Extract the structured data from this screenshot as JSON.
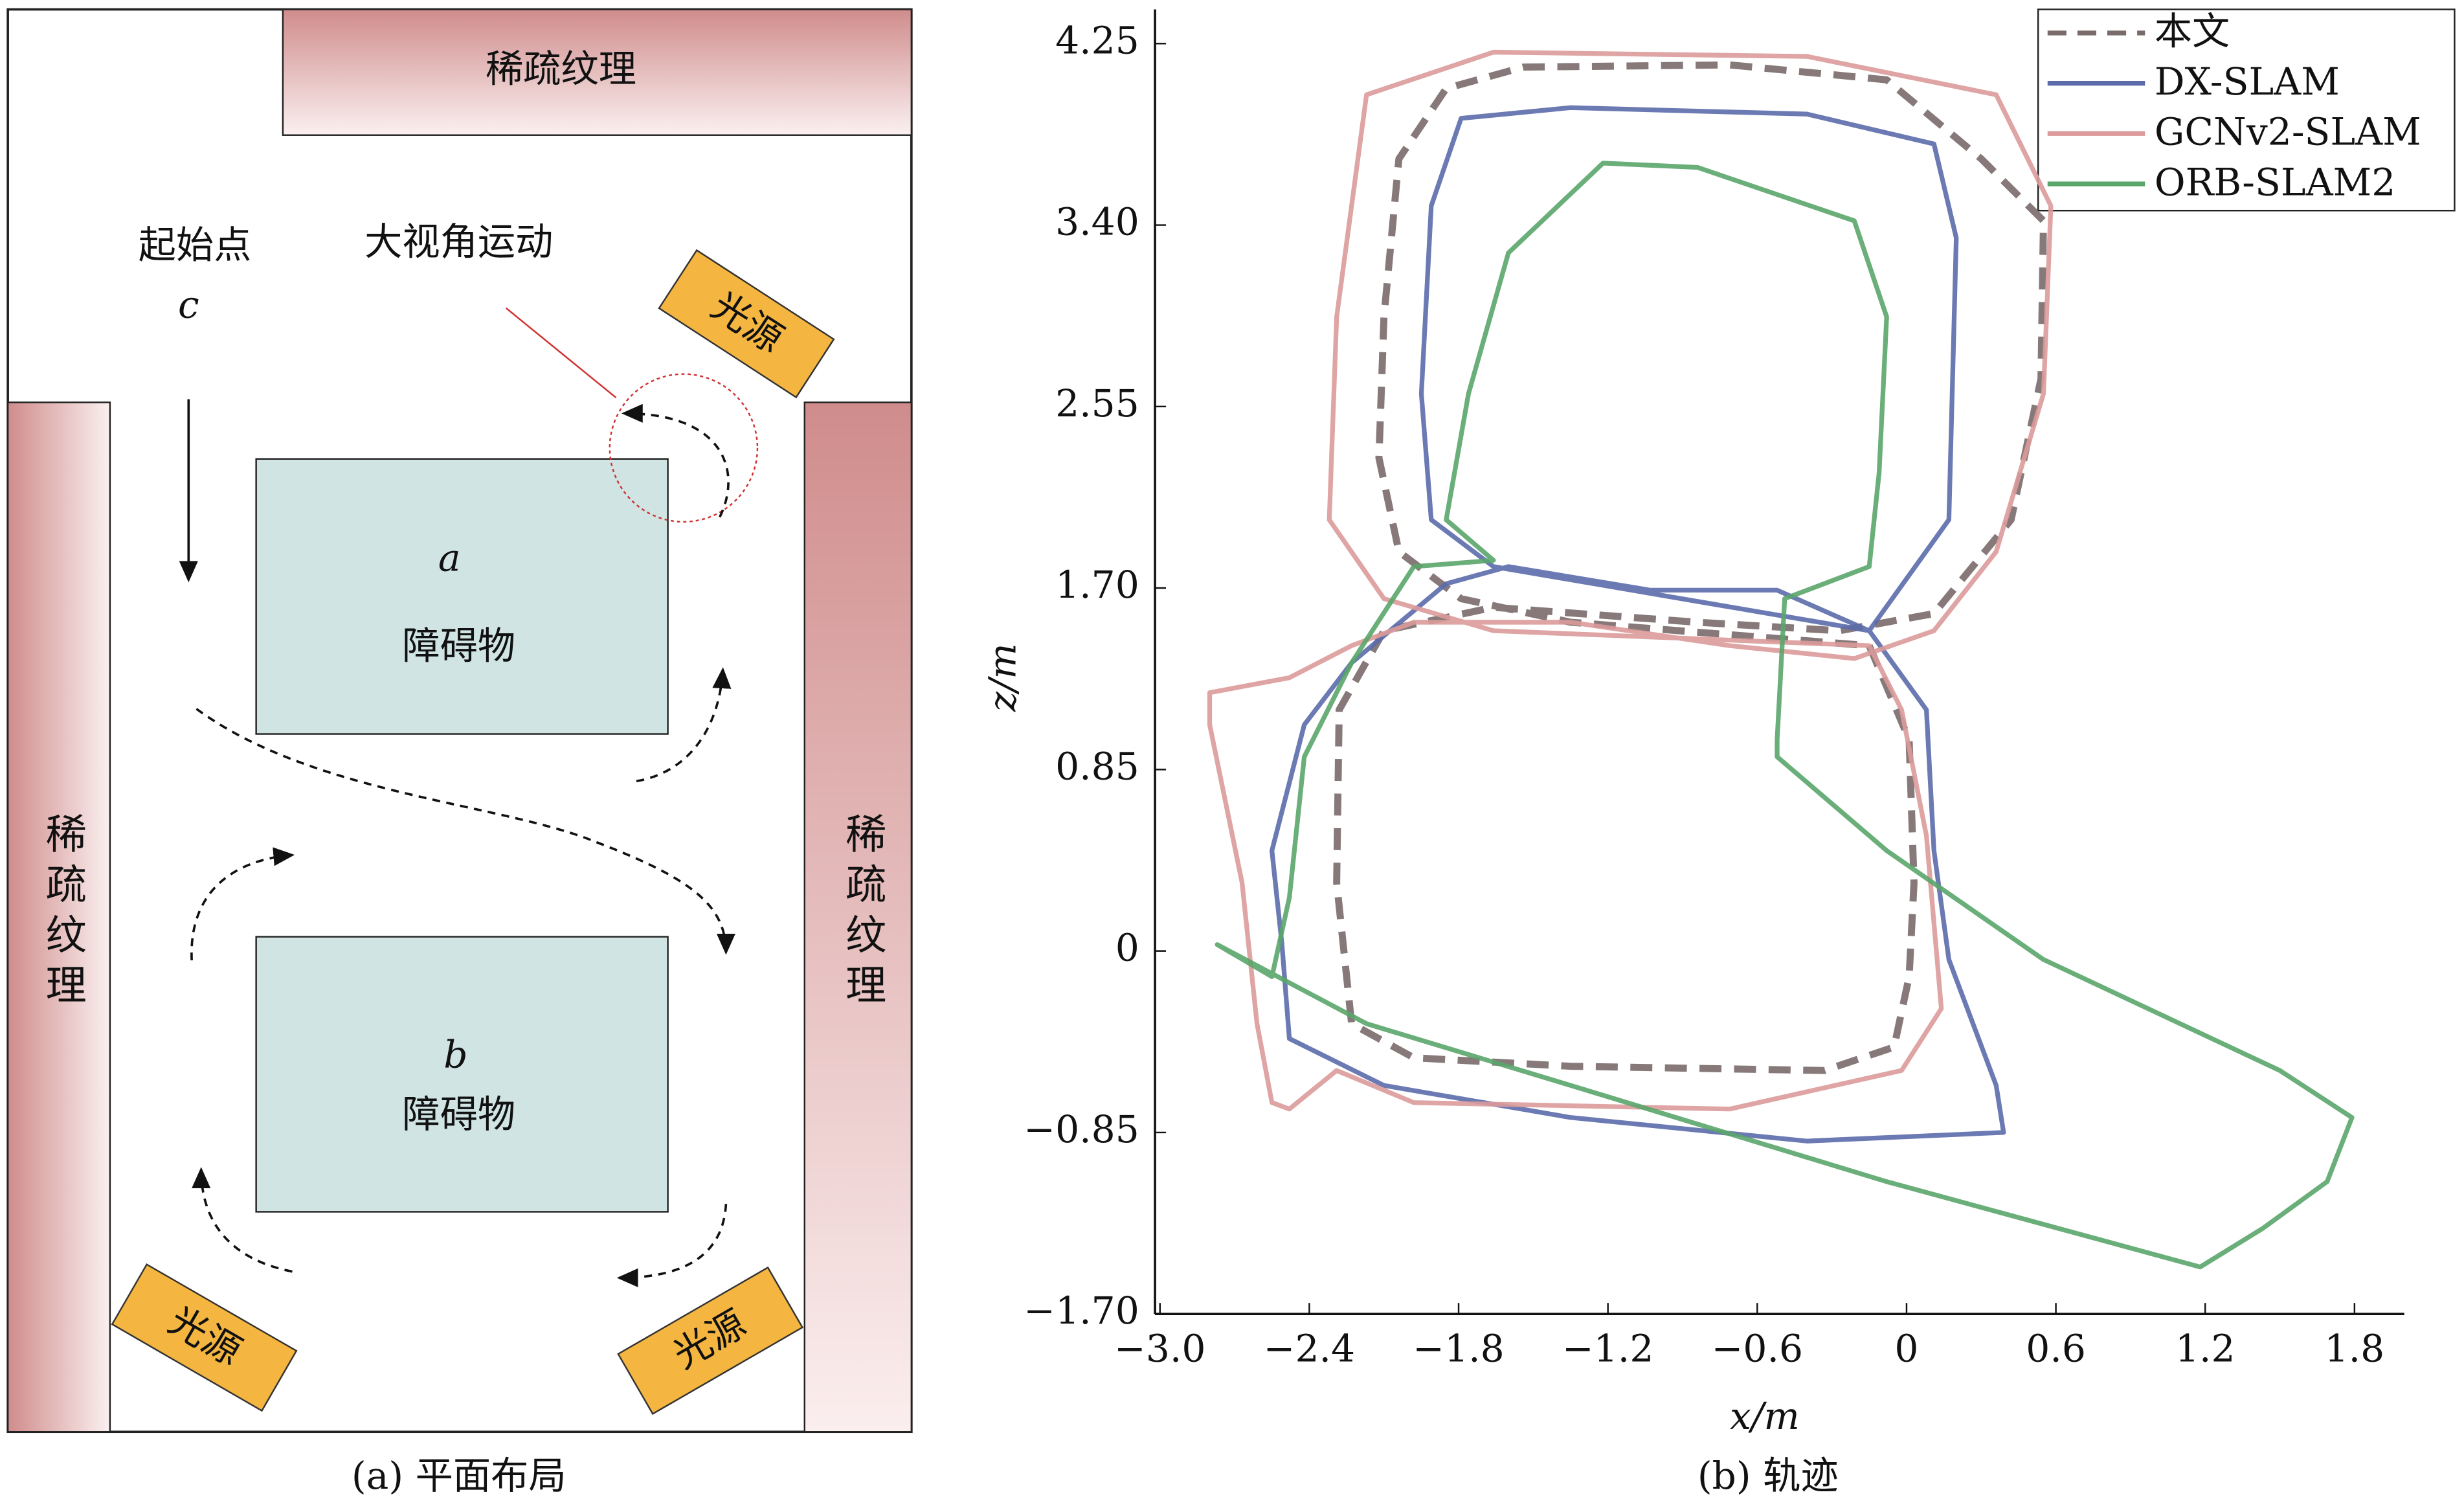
{
  "diagram": {
    "caption": "(a) 平面布局",
    "walls": [
      "稀疏纹理",
      "稀疏纹理",
      "稀疏纹理"
    ],
    "start_label": "起始点",
    "start_id": "c",
    "motion_label": "大视角运动",
    "lights": [
      "光源",
      "光源",
      "光源"
    ],
    "obstacles": [
      {
        "id": "a",
        "label": "障碍物"
      },
      {
        "id": "b",
        "label": "障碍物"
      }
    ]
  },
  "chart_data": {
    "type": "line",
    "caption": "(b) 轨迹",
    "x_label": "x/m",
    "y_label": "z/m",
    "xlim": [
      -3.02,
      2.0
    ],
    "ylim": [
      -1.7,
      4.41
    ],
    "xticks": [
      {
        "value": -3.0,
        "label": "−3.0"
      },
      {
        "value": -2.4,
        "label": "−2.4"
      },
      {
        "value": -1.8,
        "label": "−1.8"
      },
      {
        "value": -1.2,
        "label": "−1.2"
      },
      {
        "value": -0.6,
        "label": "−0.6"
      },
      0,
      0.6,
      1.2,
      1.8
    ],
    "yticks": [
      {
        "value": -1.7,
        "label": "−1.70"
      },
      {
        "value": -0.85,
        "label": "−0.85"
      },
      0,
      0.85,
      {
        "value": 1.7,
        "label": "1.70"
      },
      2.55,
      {
        "value": 3.4,
        "label": "3.40"
      },
      4.25
    ],
    "legend": "top-right",
    "series": [
      {
        "name": "本文",
        "color": "#7a6a6a",
        "linestyle": "dashed",
        "x": [
          -0.15,
          0.01,
          0.03,
          0.01,
          -0.05,
          -0.33,
          -1.35,
          -1.98,
          -2.23,
          -2.29,
          -2.28,
          -2.1,
          -1.66,
          -0.84,
          -0.27,
          0.11,
          0.42,
          0.54,
          0.55,
          0.3,
          -0.08,
          -0.71,
          -1.54,
          -1.85,
          -2.04,
          -2.1,
          -2.12,
          -2.04,
          -1.79,
          -1.35
        ],
        "values": [
          1.43,
          0.99,
          0.32,
          -0.12,
          -0.45,
          -0.56,
          -0.54,
          -0.5,
          -0.34,
          0.32,
          1.13,
          1.5,
          1.61,
          1.54,
          1.5,
          1.58,
          2.02,
          2.68,
          3.42,
          3.71,
          4.08,
          4.15,
          4.14,
          4.04,
          3.71,
          2.97,
          2.31,
          1.87,
          1.65,
          1.54
        ]
      },
      {
        "name": "DX-SLAM",
        "color": "#5b6bab",
        "linestyle": "solid",
        "x": [
          -0.15,
          0.08,
          0.11,
          0.17,
          0.36,
          0.39,
          -0.4,
          -1.35,
          -2.1,
          -2.48,
          -2.51,
          -2.55,
          -2.42,
          -2.23,
          -1.85,
          -1.6,
          -1.03,
          -0.52,
          -0.15,
          0.17,
          0.2,
          0.11,
          -0.4,
          -1.35,
          -1.79,
          -1.91,
          -1.95,
          -1.91,
          -1.66
        ],
        "values": [
          1.5,
          1.13,
          0.47,
          -0.04,
          -0.63,
          -0.85,
          -0.89,
          -0.78,
          -0.63,
          -0.41,
          0.03,
          0.47,
          1.06,
          1.35,
          1.72,
          1.8,
          1.69,
          1.69,
          1.5,
          2.02,
          3.34,
          3.78,
          3.92,
          3.95,
          3.9,
          3.49,
          2.61,
          2.02,
          1.8
        ]
      },
      {
        "name": "GCNv2-SLAM",
        "color": "#dc9a9a",
        "linestyle": "solid",
        "x": [
          -0.15,
          -0.02,
          0.08,
          0.14,
          -0.02,
          -0.71,
          -1.98,
          -2.29,
          -2.48,
          -2.55,
          -2.61,
          -2.67,
          -2.8,
          -2.8,
          -2.48,
          -2.23,
          -1.98,
          -1.35,
          -0.71,
          -0.21,
          0.11,
          0.36,
          0.55,
          0.58,
          0.36,
          -0.4,
          -1.66,
          -2.17,
          -2.29,
          -2.32,
          -2.1,
          -1.66
        ],
        "values": [
          1.43,
          1.13,
          0.54,
          -0.27,
          -0.56,
          -0.74,
          -0.71,
          -0.56,
          -0.74,
          -0.71,
          -0.34,
          0.32,
          1.06,
          1.21,
          1.28,
          1.43,
          1.54,
          1.54,
          1.43,
          1.37,
          1.5,
          1.87,
          2.61,
          3.49,
          4.01,
          4.19,
          4.21,
          4.01,
          2.97,
          2.02,
          1.65,
          1.5
        ]
      },
      {
        "name": "ORB-SLAM2",
        "color": "#5aa56a",
        "linestyle": "solid",
        "x": [
          -0.52,
          -0.49,
          -0.15,
          -0.11,
          -0.08,
          -0.21,
          -0.84,
          -1.22,
          -1.6,
          -1.76,
          -1.85,
          -1.66,
          -1.98,
          -2.23,
          -2.42,
          -2.48,
          -2.55,
          -2.77,
          -2.17,
          -1.35,
          -0.08,
          1.18,
          1.43,
          1.69,
          1.79,
          1.5,
          0.55,
          -0.08,
          -0.52
        ],
        "values": [
          0.99,
          1.65,
          1.8,
          2.24,
          2.97,
          3.42,
          3.67,
          3.69,
          3.27,
          2.61,
          2.02,
          1.83,
          1.8,
          1.35,
          0.91,
          0.25,
          -0.12,
          0.03,
          -0.34,
          -0.63,
          -1.08,
          -1.48,
          -1.3,
          -1.08,
          -0.78,
          -0.56,
          -0.04,
          0.47,
          0.91
        ]
      }
    ]
  }
}
